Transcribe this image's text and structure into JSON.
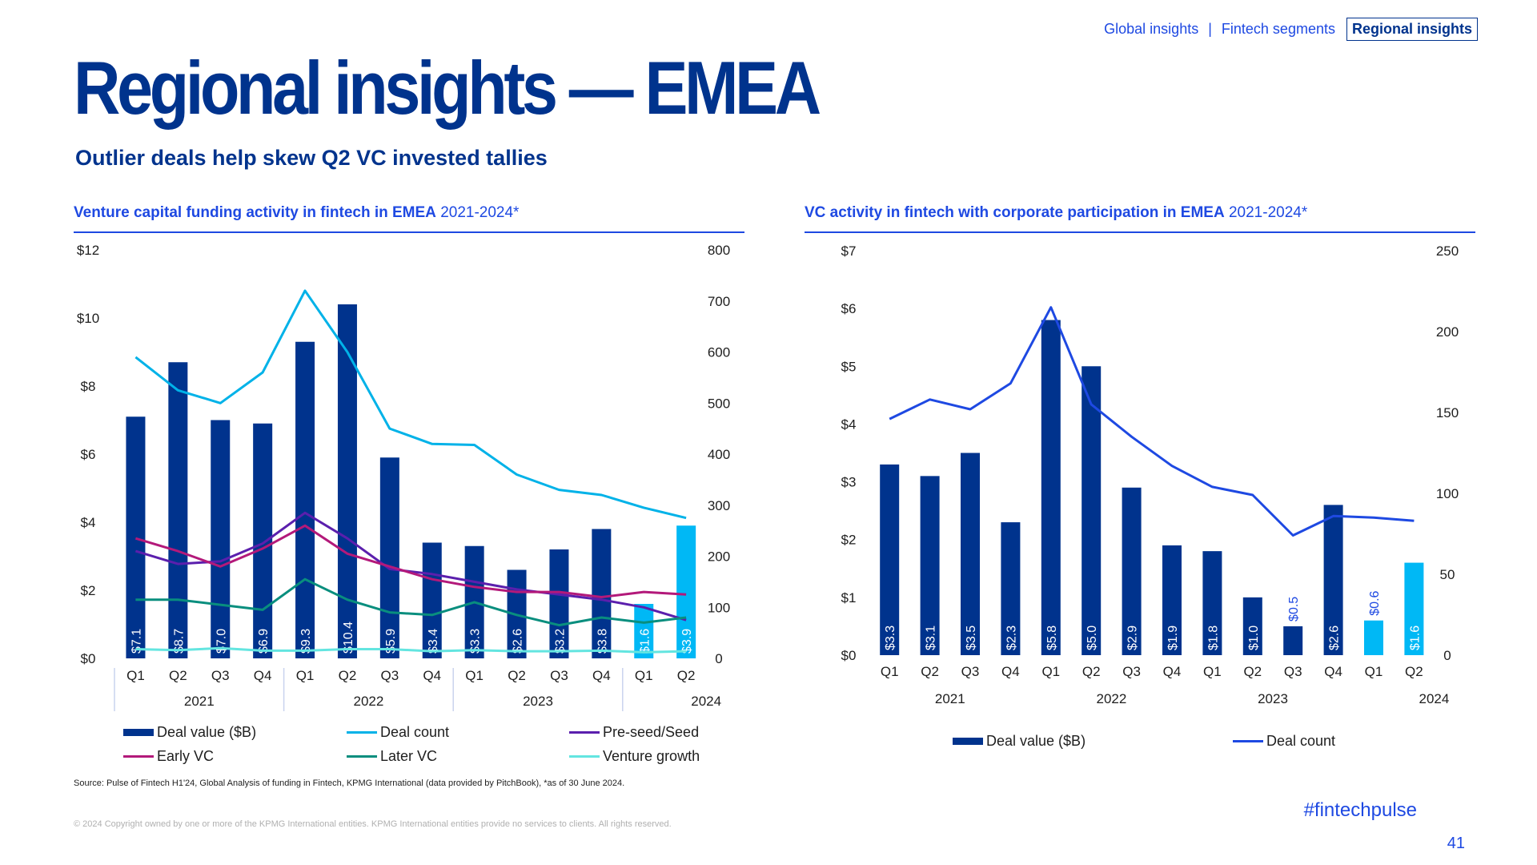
{
  "nav": {
    "items": [
      "Global insights",
      "Fintech segments",
      "Regional insights"
    ],
    "separator": "|",
    "active_index": 2
  },
  "title": "Regional insights — EMEA",
  "subtitle": "Outlier deals help skew Q2 VC invested tallies",
  "colors": {
    "navy": "#00338d",
    "blue": "#1e49e2",
    "light_blue": "#00b8f5",
    "cyan": "#00b2e8",
    "purple": "#5b1fad",
    "magenta": "#b3197a",
    "teal": "#098e7e",
    "aqua": "#63e5e0"
  },
  "left_heading": {
    "strong": "Venture capital funding activity in fintech in EMEA",
    "light": "2021-2024*"
  },
  "right_heading": {
    "strong": "VC activity in fintech with corporate participation in EMEA",
    "light": "2021-2024*"
  },
  "chart_data": [
    {
      "type": "bar",
      "categories": [
        "Q1",
        "Q2",
        "Q3",
        "Q4",
        "Q1",
        "Q2",
        "Q3",
        "Q4",
        "Q1",
        "Q2",
        "Q3",
        "Q4",
        "Q1",
        "Q2"
      ],
      "years": [
        "2021",
        "2022",
        "2023",
        "2024"
      ],
      "y_left_ticks": [
        "$0",
        "$2",
        "$4",
        "$6",
        "$8",
        "$10",
        "$12"
      ],
      "y_right_ticks": [
        "0",
        "100",
        "200",
        "300",
        "400",
        "500",
        "600",
        "700",
        "800"
      ],
      "ylim_left": [
        0,
        12
      ],
      "ylim_right": [
        0,
        800
      ],
      "bar_series": {
        "name": "Deal value ($B)",
        "values": [
          7.1,
          8.7,
          7.0,
          6.9,
          9.3,
          10.4,
          5.9,
          3.4,
          3.3,
          2.6,
          3.2,
          3.8,
          1.6,
          3.9
        ],
        "labels": [
          "$7.1",
          "$8.7",
          "$7.0",
          "$6.9",
          "$9.3",
          "$10.4",
          "$5.9",
          "$3.4",
          "$3.3",
          "$2.6",
          "$3.2",
          "$3.8",
          "$1.6",
          "$3.9"
        ],
        "highlight_last": 2
      },
      "line_series": [
        {
          "name": "Deal count",
          "color": "#00b2e8",
          "values": [
            590,
            525,
            500,
            560,
            720,
            600,
            450,
            420,
            418,
            360,
            330,
            320,
            295,
            275
          ]
        },
        {
          "name": "Pre-seed/Seed",
          "color": "#5b1fad",
          "values": [
            210,
            185,
            190,
            225,
            285,
            235,
            175,
            165,
            150,
            135,
            125,
            115,
            100,
            75
          ]
        },
        {
          "name": "Early VC",
          "color": "#b3197a",
          "values": [
            235,
            210,
            180,
            215,
            260,
            205,
            180,
            155,
            140,
            130,
            130,
            120,
            130,
            125
          ]
        },
        {
          "name": "Later VC",
          "color": "#098e7e",
          "values": [
            115,
            115,
            105,
            95,
            155,
            115,
            90,
            85,
            110,
            85,
            65,
            80,
            70,
            80
          ]
        },
        {
          "name": "Venture growth",
          "color": "#63e5e0",
          "values": [
            18,
            16,
            20,
            15,
            15,
            18,
            18,
            14,
            16,
            14,
            14,
            15,
            12,
            14
          ]
        }
      ]
    },
    {
      "type": "bar",
      "categories": [
        "Q1",
        "Q2",
        "Q3",
        "Q4",
        "Q1",
        "Q2",
        "Q3",
        "Q4",
        "Q1",
        "Q2",
        "Q3",
        "Q4",
        "Q1",
        "Q2"
      ],
      "years": [
        "2021",
        "2022",
        "2023",
        "2024"
      ],
      "y_left_ticks": [
        "$0",
        "$1",
        "$2",
        "$3",
        "$4",
        "$5",
        "$6",
        "$7"
      ],
      "y_right_ticks": [
        "0",
        "50",
        "100",
        "150",
        "200",
        "250"
      ],
      "ylim_left": [
        0,
        7
      ],
      "ylim_right": [
        0,
        250
      ],
      "bar_series": {
        "name": "Deal value ($B)",
        "values": [
          3.3,
          3.1,
          3.5,
          2.3,
          5.8,
          5.0,
          2.9,
          1.9,
          1.8,
          1.0,
          0.5,
          2.6,
          0.6,
          1.6
        ],
        "labels": [
          "$3.3",
          "$3.1",
          "$3.5",
          "$2.3",
          "$5.8",
          "$5.0",
          "$2.9",
          "$1.9",
          "$1.8",
          "$1.0",
          "$0.5",
          "$2.6",
          "$0.6",
          "$1.6"
        ],
        "highlight_last": 2
      },
      "line_series": [
        {
          "name": "Deal count",
          "color": "#1e49e2",
          "values": [
            146,
            158,
            152,
            168,
            215,
            155,
            135,
            117,
            104,
            99,
            74,
            86,
            85,
            83
          ]
        }
      ]
    }
  ],
  "source": "Source: Pulse of Fintech H1'24, Global Analysis of funding in Fintech, KPMG International (data provided by PitchBook), *as of 30 June 2024.",
  "copyright": "© 2024 Copyright owned by one or more of the KPMG International entities. KPMG International entities provide no services to clients. All rights reserved.",
  "hashtag": "#fintechpulse",
  "page_number": "41"
}
